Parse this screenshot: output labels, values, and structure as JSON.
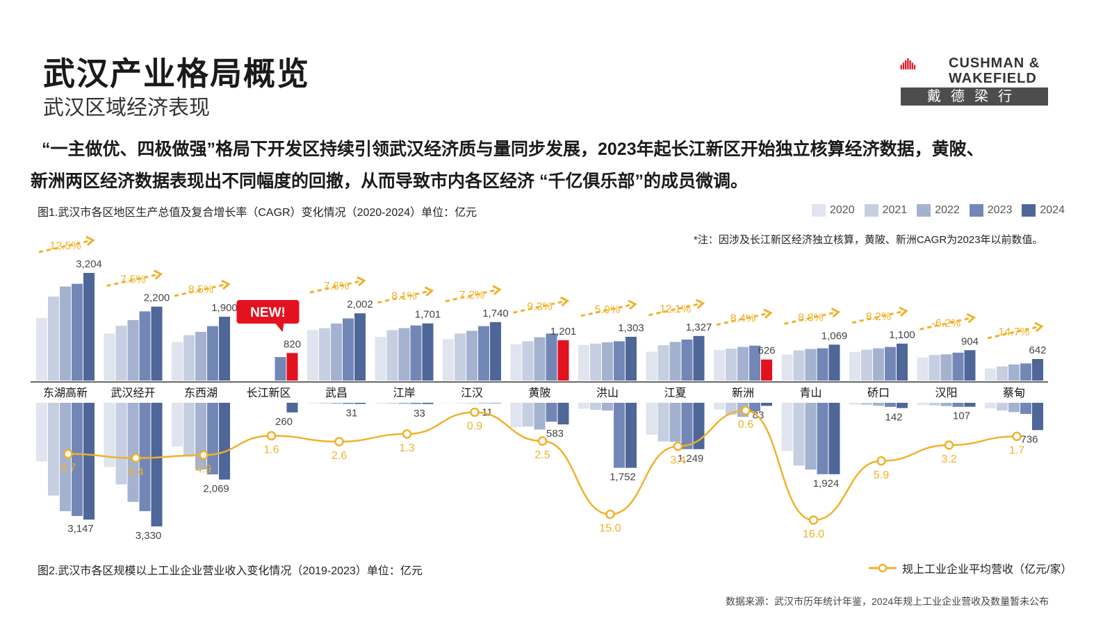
{
  "header": {
    "title": "武汉产业格局概览",
    "subtitle": "武汉区域经济表现",
    "logo_line1": "CUSHMAN &",
    "logo_line2": "WAKEFIELD",
    "logo_cn": "戴德梁行"
  },
  "headline_line1": "“一主做优、四极做强”格局下开发区持续引领武汉经济质与量同步发展，2023年起长江新区开始独立核算经济数据，黄陂、",
  "headline_line2": "新洲两区经济数据表现出不同幅度的回撤，从而导致市内各区经济 “千亿俱乐部”的成员微调。",
  "note": "*注：因涉及长江新区经济独立核算，黄陂、新洲CAGR为2023年以前数值。",
  "source": "数据来源：武汉市历年统计年鉴，2024年规上工业企业营收及数量暂未公布",
  "new_badge": "NEW!",
  "chart_data": [
    {
      "type": "bar",
      "title": "图1.武汉市各区地区生产总值及复合增长率（CAGR）变化情况（2020-2024）单位：亿元",
      "series_names": [
        "2020",
        "2021",
        "2022",
        "2023",
        "2024"
      ],
      "colors": [
        "#dfe4ee",
        "#c6cfe1",
        "#a4b2cf",
        "#7387b7",
        "#4e6698"
      ],
      "highlight_color": "#e3121f",
      "categories": [
        "东湖高新",
        "武汉经开",
        "东西湖",
        "长江新区",
        "武昌",
        "江岸",
        "江汉",
        "黄陂",
        "洪山",
        "江夏",
        "新洲",
        "青山",
        "硚口",
        "汉阳",
        "蔡甸"
      ],
      "values": [
        [
          1860,
          2500,
          2800,
          2880,
          3204
        ],
        [
          1400,
          1630,
          1800,
          2060,
          2200
        ],
        [
          1150,
          1350,
          1450,
          1620,
          1900
        ],
        [
          null,
          null,
          null,
          700,
          820
        ],
        [
          1500,
          1560,
          1700,
          1850,
          2002
        ],
        [
          1300,
          1500,
          1560,
          1640,
          1701
        ],
        [
          1230,
          1400,
          1480,
          1620,
          1740
        ],
        [
          1080,
          1170,
          1290,
          1400,
          1201
        ],
        [
          1060,
          1100,
          1140,
          1170,
          1303
        ],
        [
          860,
          1050,
          1150,
          1220,
          1327
        ],
        [
          910,
          950,
          1000,
          1040,
          626
        ],
        [
          770,
          900,
          940,
          960,
          1069
        ],
        [
          850,
          920,
          960,
          1000,
          1100
        ],
        [
          690,
          760,
          780,
          830,
          904
        ],
        [
          360,
          420,
          480,
          510,
          642
        ]
      ],
      "labels_2024": [
        "3,204",
        "2,200",
        "1,900",
        "820",
        "2,002",
        "1,701",
        "1,740",
        "1,201",
        "1,303",
        "1,327",
        "626",
        "1,069",
        "1,100",
        "904",
        "642"
      ],
      "highlight_2024": [
        false,
        false,
        false,
        true,
        false,
        false,
        false,
        true,
        false,
        false,
        true,
        false,
        false,
        false,
        false
      ],
      "cagr": [
        "12.5%",
        "7.5%",
        "8.5%",
        "",
        "7.6%",
        "8.1%",
        "7.2%",
        "9.3%",
        "5.9%",
        "12.1%",
        "8.4%",
        "8.8%",
        "8.2%",
        "-6.2%",
        "14.7%"
      ],
      "ylim": [
        0,
        3600
      ]
    },
    {
      "type": "bar",
      "title": "图2.武汉市各区规模以上工业企业营业收入变化情况（2019-2023）单位：亿元",
      "series_order_note": "",
      "categories": [
        "东湖高新",
        "武汉经开",
        "东西湖",
        "长江新区",
        "武昌",
        "江岸",
        "江汉",
        "黄陂",
        "洪山",
        "江夏",
        "新洲",
        "青山",
        "硚口",
        "汉阳",
        "蔡甸"
      ],
      "values": [
        [
          1580,
          2500,
          2920,
          3050,
          3147
        ],
        [
          1730,
          2200,
          2670,
          2920,
          3330
        ],
        [
          1180,
          1450,
          1800,
          1930,
          2069
        ],
        [
          null,
          null,
          null,
          null,
          260
        ],
        [
          15,
          20,
          25,
          30,
          31
        ],
        [
          20,
          25,
          30,
          32,
          33
        ],
        [
          8,
          9,
          10,
          11,
          11
        ],
        [
          660,
          640,
          720,
          510,
          583
        ],
        [
          160,
          190,
          210,
          1752,
          1752
        ],
        [
          860,
          1040,
          1050,
          1249,
          1249
        ],
        [
          180,
          320,
          380,
          230,
          83
        ],
        [
          1300,
          1690,
          1800,
          1924,
          1924
        ],
        [
          50,
          60,
          80,
          110,
          142
        ],
        [
          60,
          70,
          90,
          110,
          107
        ],
        [
          150,
          210,
          250,
          300,
          736
        ]
      ],
      "labels": [
        "3,147",
        "3,330",
        "2,069",
        "260",
        "31",
        "33",
        "11",
        "583",
        "1,752",
        "1,249",
        "83",
        "1,924",
        "142",
        "107",
        "736"
      ],
      "line_series": {
        "name": "规上工业企业平均营收（亿元/家）",
        "color": "#f2b029",
        "values": [
          4.7,
          5.4,
          4.9,
          1.6,
          2.6,
          1.3,
          0.9,
          2.5,
          15.0,
          3.4,
          0.6,
          16.0,
          5.9,
          3.2,
          1.7
        ],
        "labels": [
          "4.7",
          "5.4",
          "4.9",
          "1.6",
          "2.6",
          "1.3",
          "0.9",
          "2.5",
          "15.0",
          "3.4",
          "0.6",
          "16.0",
          "5.9",
          "3.2",
          "1.7"
        ]
      },
      "ylim": [
        0,
        3600
      ]
    }
  ]
}
